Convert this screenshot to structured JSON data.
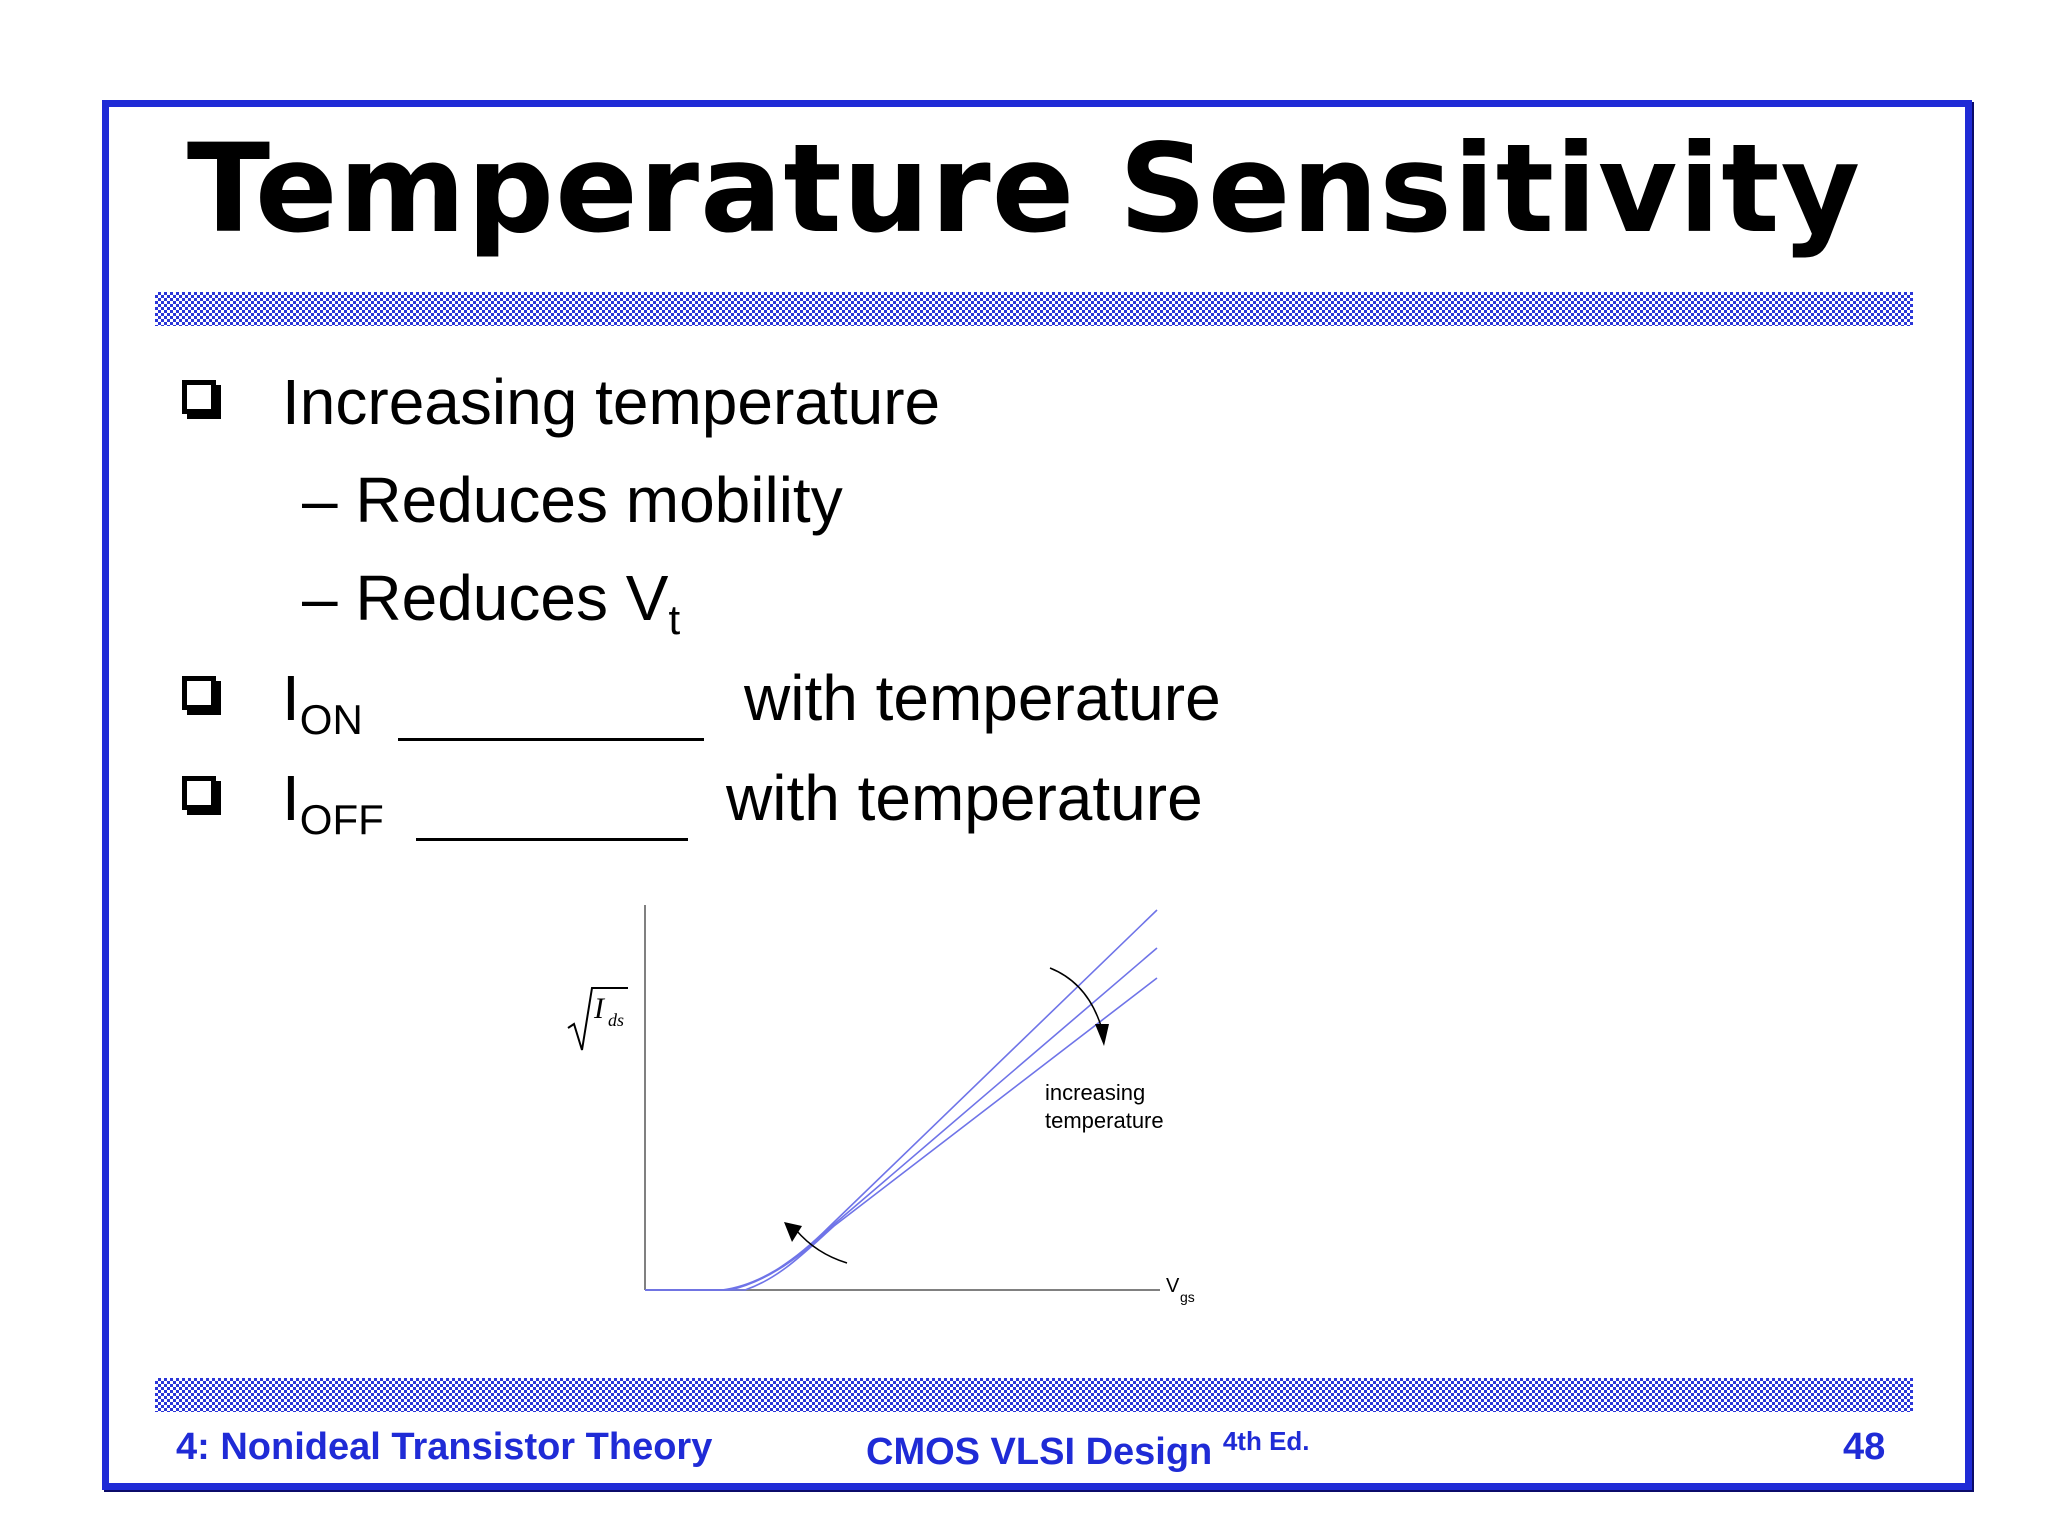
{
  "slide": {
    "title": "Temperature Sensitivity",
    "accent_color": "#1f2bd6"
  },
  "bullets": {
    "b1": "Increasing temperature",
    "b1_sub1": "– Reduces mobility",
    "b1_sub2_main": "– Reduces V",
    "b1_sub2_sub": "t",
    "b2_main": "I",
    "b2_sub": "ON",
    "b2_tail": "with temperature",
    "b3_main": "I",
    "b3_sub": "OFF",
    "b3_tail": "with temperature"
  },
  "figure": {
    "y_label_main": "I",
    "y_label_sub": "ds",
    "x_label_main": "V",
    "x_label_sub": "gs",
    "annotation_line1": "increasing",
    "annotation_line2": "temperature",
    "curve_color": "#6f74e8"
  },
  "footer": {
    "left": "4: Nonideal Transistor Theory",
    "center": "CMOS VLSI Design",
    "center_sup": "4th Ed.",
    "page_number": "48"
  }
}
